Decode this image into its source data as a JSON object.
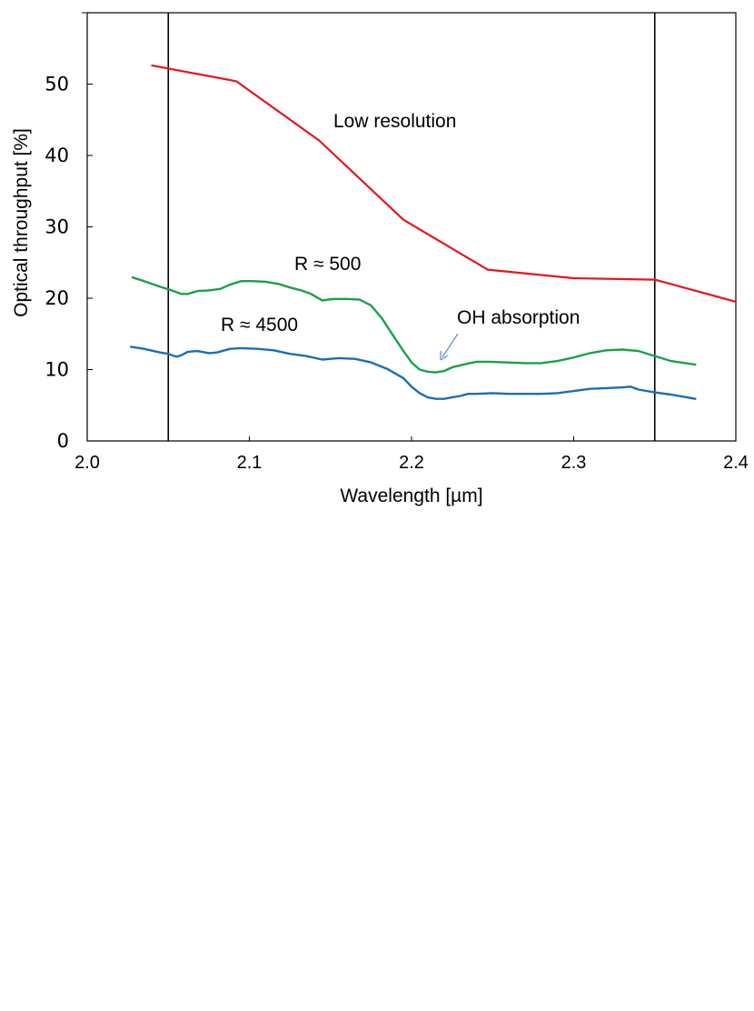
{
  "chart_data": {
    "type": "line",
    "title": "",
    "xlabel": "Wavelength [µm]",
    "ylabel": "Optical throughput [%]",
    "xlim": [
      2.0,
      2.4
    ],
    "ylim": [
      0,
      60
    ],
    "xticks": [
      2.0,
      2.1,
      2.2,
      2.3,
      2.4
    ],
    "xtick_labels": [
      "2.0",
      "2.1",
      "2.2",
      "2.3",
      "2.4"
    ],
    "yticks": [
      0,
      10,
      20,
      30,
      40,
      50
    ],
    "ytick_labels": [
      "0",
      "10",
      "20",
      "30",
      "40",
      "50"
    ],
    "grid": false,
    "legend": "none",
    "vertical_lines": [
      2.05,
      2.35
    ],
    "series": [
      {
        "name": "Low resolution",
        "color": "#e8141c",
        "x": [
          2.04,
          2.092,
          2.143,
          2.195,
          2.247,
          2.3,
          2.35,
          2.4
        ],
        "y": [
          52.6,
          50.4,
          42.1,
          31.0,
          24.0,
          22.8,
          22.6,
          19.5
        ]
      },
      {
        "name": "R ≈ 500",
        "color": "#1aa14a",
        "x": [
          2.028,
          2.035,
          2.045,
          2.052,
          2.058,
          2.062,
          2.068,
          2.075,
          2.082,
          2.088,
          2.095,
          2.102,
          2.11,
          2.118,
          2.125,
          2.132,
          2.138,
          2.145,
          2.152,
          2.16,
          2.168,
          2.175,
          2.182,
          2.188,
          2.195,
          2.2,
          2.205,
          2.21,
          2.215,
          2.22,
          2.225,
          2.232,
          2.24,
          2.248,
          2.258,
          2.27,
          2.28,
          2.29,
          2.3,
          2.31,
          2.32,
          2.33,
          2.34,
          2.35,
          2.36,
          2.375
        ],
        "y": [
          22.9,
          22.4,
          21.6,
          21.1,
          20.6,
          20.6,
          21.0,
          21.1,
          21.3,
          21.9,
          22.4,
          22.4,
          22.3,
          22.0,
          21.5,
          21.1,
          20.6,
          19.7,
          19.9,
          19.9,
          19.8,
          19.0,
          17.1,
          15.0,
          12.6,
          11.0,
          10.0,
          9.7,
          9.6,
          9.8,
          10.3,
          10.7,
          11.1,
          11.1,
          11.0,
          10.9,
          10.9,
          11.2,
          11.7,
          12.3,
          12.7,
          12.8,
          12.6,
          11.9,
          11.2,
          10.7
        ]
      },
      {
        "name": "R ≈ 4500",
        "color": "#1a6fb5",
        "x": [
          2.027,
          2.035,
          2.045,
          2.05,
          2.055,
          2.058,
          2.062,
          2.068,
          2.075,
          2.08,
          2.088,
          2.095,
          2.105,
          2.115,
          2.125,
          2.135,
          2.145,
          2.155,
          2.165,
          2.175,
          2.185,
          2.195,
          2.2,
          2.205,
          2.21,
          2.215,
          2.22,
          2.225,
          2.23,
          2.235,
          2.24,
          2.25,
          2.26,
          2.27,
          2.28,
          2.29,
          2.3,
          2.31,
          2.32,
          2.33,
          2.335,
          2.34,
          2.35,
          2.36,
          2.375
        ],
        "y": [
          13.2,
          12.9,
          12.4,
          12.2,
          11.8,
          12.0,
          12.5,
          12.6,
          12.3,
          12.4,
          12.9,
          13.0,
          12.9,
          12.7,
          12.2,
          11.9,
          11.4,
          11.6,
          11.5,
          11.0,
          10.1,
          8.8,
          7.6,
          6.7,
          6.1,
          5.9,
          5.9,
          6.1,
          6.3,
          6.6,
          6.6,
          6.7,
          6.6,
          6.6,
          6.6,
          6.7,
          7.0,
          7.3,
          7.4,
          7.5,
          7.6,
          7.2,
          6.8,
          6.5,
          5.9
        ]
      }
    ],
    "annotations": {
      "low_resolution": "Low resolution",
      "r500": "R ≈ 500",
      "r4500": "R ≈ 4500",
      "oh": "OH absorption"
    },
    "arrow_color": "#6b8fc9"
  }
}
